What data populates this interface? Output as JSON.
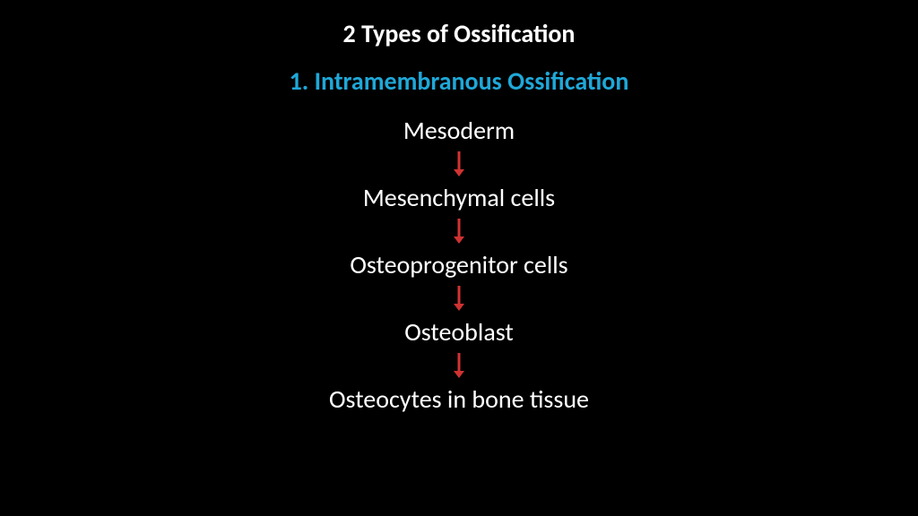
{
  "title": {
    "text": "2 Types of Ossification",
    "color": "#ffffff",
    "fontsize": 28
  },
  "subtitle": {
    "text": "1. Intramembranous Ossification",
    "color": "#1fa8d8",
    "fontsize": 28
  },
  "flow": {
    "type": "flowchart",
    "steps": [
      "Mesoderm",
      "Mesenchymal cells",
      "Osteoprogenitor cells",
      "Osteoblast",
      "Osteocytes in bone tissue"
    ],
    "step_color": "#ffffff",
    "step_fontsize": 28,
    "arrow_color": "#d03232",
    "arrow_height": 28,
    "arrow_width": 12,
    "step_gap": 6
  },
  "background_color": "#000000"
}
